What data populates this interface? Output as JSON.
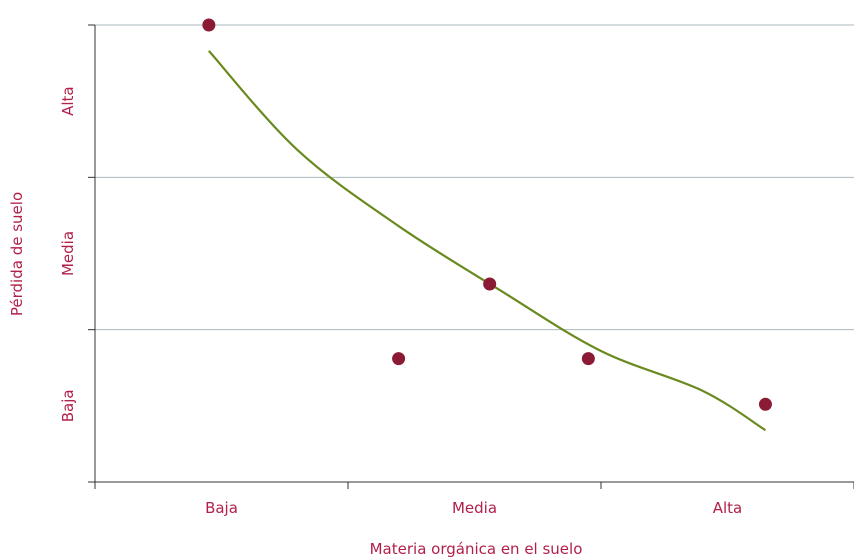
{
  "chart_data": {
    "type": "scatter",
    "title": "",
    "xlabel": "Materia orgánica en el suelo",
    "ylabel": "Pérdida de suelo",
    "x_categories": [
      "Baja",
      "Media",
      "Alta"
    ],
    "y_categories": [
      "Baja",
      "Media",
      "Alta"
    ],
    "xlim": [
      0,
      3
    ],
    "ylim": [
      0,
      3
    ],
    "grid": true,
    "points": [
      {
        "x": 0.45,
        "y": 3.0
      },
      {
        "x": 1.2,
        "y": 0.81
      },
      {
        "x": 1.56,
        "y": 1.3
      },
      {
        "x": 1.95,
        "y": 0.81
      },
      {
        "x": 2.65,
        "y": 0.51
      }
    ],
    "trend_line": [
      {
        "x": 0.45,
        "y": 2.83
      },
      {
        "x": 0.8,
        "y": 2.18
      },
      {
        "x": 1.2,
        "y": 1.68
      },
      {
        "x": 1.6,
        "y": 1.26
      },
      {
        "x": 2.0,
        "y": 0.86
      },
      {
        "x": 2.4,
        "y": 0.6
      },
      {
        "x": 2.65,
        "y": 0.34
      }
    ],
    "colors": {
      "points": "#8b1a35",
      "trend": "#6a8a1f",
      "labels": "#b2204a",
      "grid": "#a9b9bd",
      "axis": "#333333"
    }
  }
}
